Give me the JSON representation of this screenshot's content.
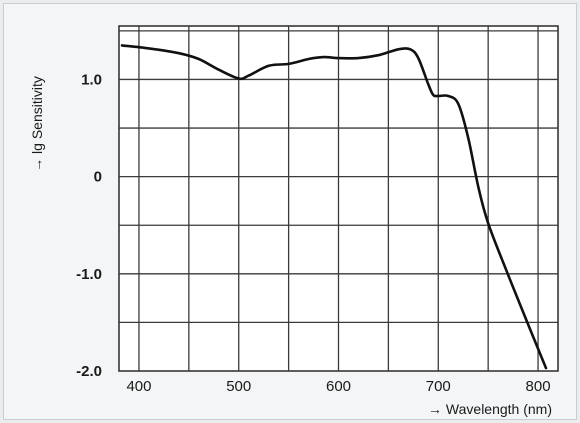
{
  "chart_data": {
    "type": "line",
    "title": "",
    "xlabel": "→ Wavelength (nm)",
    "ylabel": "→ lg Sensitivity",
    "xlim": [
      380,
      820
    ],
    "ylim": [
      -2.0,
      1.55
    ],
    "x_ticks": [
      400,
      500,
      600,
      700,
      800
    ],
    "y_ticks": [
      1.0,
      0,
      -1.0,
      -2.0
    ],
    "y_tick_labels": [
      "1.0",
      "0",
      "-1.0",
      "-2.0"
    ],
    "grid": true,
    "series": [
      {
        "x": [
          383,
          410,
          440,
          460,
          480,
          500,
          510,
          530,
          550,
          570,
          585,
          600,
          620,
          640,
          660,
          672,
          680,
          690,
          695,
          700,
          710,
          720,
          730,
          740,
          750,
          770,
          790,
          808
        ],
        "y": [
          1.35,
          1.32,
          1.27,
          1.21,
          1.1,
          1.01,
          1.04,
          1.14,
          1.16,
          1.21,
          1.23,
          1.22,
          1.22,
          1.25,
          1.31,
          1.31,
          1.22,
          0.95,
          0.84,
          0.83,
          0.83,
          0.75,
          0.4,
          -0.1,
          -0.48,
          -1.01,
          -1.52,
          -1.97
        ]
      }
    ],
    "colors": {
      "line": "#111111",
      "grid": "#3a3a3a",
      "plot_bg": "#ffffff"
    }
  }
}
